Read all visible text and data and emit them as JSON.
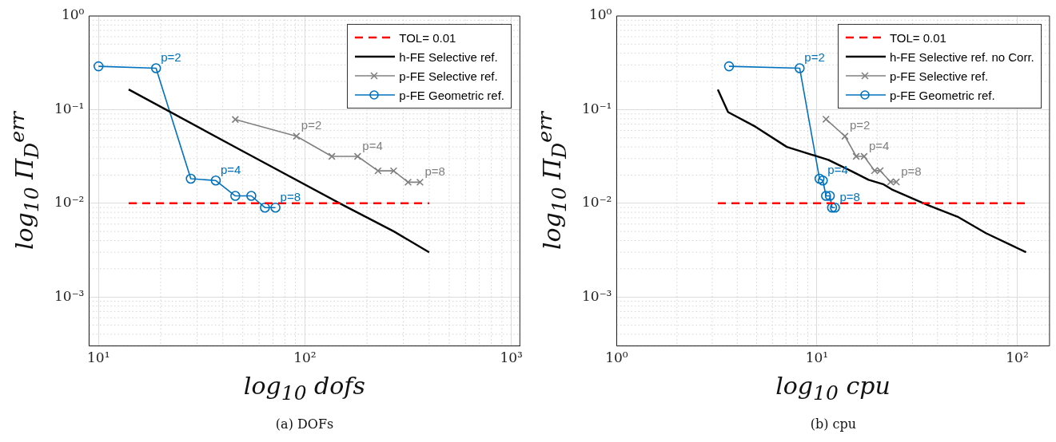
{
  "chart_data": [
    {
      "type": "line",
      "xlabel": "log$_{10}$ dofs",
      "ylabel": "log$_{10}$ Π$_{D}$$^{err}$",
      "log": "xy",
      "grid": true,
      "legend": "top right",
      "xlim": [
        9,
        1100
      ],
      "xticks": [
        {
          "value": 10,
          "label": "10¹"
        },
        {
          "value": 100,
          "label": "10²"
        },
        {
          "value": 1000,
          "label": "10³"
        }
      ],
      "ylim": [
        0.0003,
        1
      ],
      "yticks": [
        {
          "value": 0.001,
          "label": "10⁻³"
        },
        {
          "value": 0.01,
          "label": "10⁻²"
        },
        {
          "value": 0.1,
          "label": "10⁻¹"
        },
        {
          "value": 1,
          "label": "10⁰"
        }
      ],
      "series": [
        {
          "name": "TOL= 0.01",
          "color": "#ff0000",
          "line_style": "dashed",
          "marker": "none",
          "x": [
            14,
            400
          ],
          "values": [
            0.01,
            0.01
          ]
        },
        {
          "name": "h-FE Selective ref.",
          "color": "#000000",
          "marker": "none",
          "x": [
            14,
            50,
            150,
            270,
            400
          ],
          "values": [
            0.164,
            0.036,
            0.0098,
            0.005,
            0.003
          ]
        },
        {
          "name": "p-FE Selective ref.",
          "color": "#808080",
          "marker": "cross",
          "x": [
            46,
            91,
            135,
            180,
            226,
            269,
            316,
            361
          ],
          "values": [
            0.0785,
            0.052,
            0.0317,
            0.0317,
            0.0222,
            0.0222,
            0.0168,
            0.0168
          ]
        },
        {
          "name": "p-FE Geometric ref.",
          "color": "#0072bd",
          "marker": "circle",
          "x": [
            10,
            19,
            28,
            37,
            46,
            55,
            64,
            72
          ],
          "values": [
            0.29,
            0.277,
            0.0183,
            0.0175,
            0.012,
            0.012,
            0.009,
            0.009
          ]
        }
      ],
      "annotations": [
        {
          "text": "p=2",
          "x": 19,
          "y": 0.277
        },
        {
          "text": "p=4",
          "x": 37,
          "y": 0.0175
        },
        {
          "text": "p=8",
          "x": 72,
          "y": 0.009
        },
        {
          "text": "p=2",
          "x": 91,
          "y": 0.052
        },
        {
          "text": "p=4",
          "x": 180,
          "y": 0.0317
        },
        {
          "text": "p=8",
          "x": 361,
          "y": 0.0168
        },
        "(a) DOFs"
      ]
    },
    {
      "type": "line",
      "xlabel": "log$_{10}$ cpu",
      "ylabel": "log$_{10}$ Π$_{D}$$^{err}$",
      "log": "xy",
      "grid": true,
      "legend": "top right",
      "xlim": [
        1,
        145
      ],
      "xticks": [
        {
          "value": 1,
          "label": "10⁰"
        },
        {
          "value": 10,
          "label": "10¹"
        },
        {
          "value": 100,
          "label": "10²"
        }
      ],
      "ylim": [
        0.0003,
        1
      ],
      "yticks": [
        {
          "value": 0.001,
          "label": "10⁻³"
        },
        {
          "value": 0.01,
          "label": "10⁻²"
        },
        {
          "value": 0.1,
          "label": "10⁻¹"
        },
        {
          "value": 1,
          "label": "10⁰"
        }
      ],
      "series": [
        {
          "name": "TOL= 0.01",
          "color": "#ff0000",
          "line_style": "dashed",
          "marker": "none",
          "x": [
            3.2,
            110
          ],
          "values": [
            0.01,
            0.01
          ]
        },
        {
          "name": "h-FE Selective ref. no Corr.",
          "color": "#000000",
          "marker": "none",
          "x": [
            3.2,
            3.6,
            4.94,
            7.07,
            11.4,
            14.9,
            18.1,
            21.4,
            23.6,
            35.6,
            50.3,
            69.8,
            110.7
          ],
          "values": [
            0.164,
            0.094,
            0.0656,
            0.04,
            0.0291,
            0.022,
            0.0178,
            0.016,
            0.0141,
            0.0096,
            0.0072,
            0.0048,
            0.003
          ]
        },
        {
          "name": "p-FE Selective ref.",
          "color": "#808080",
          "marker": "cross",
          "x": [
            11.1,
            13.8,
            15.7,
            17.2,
            19.4,
            20.7,
            23.3,
            24.9
          ],
          "values": [
            0.079,
            0.052,
            0.0317,
            0.0317,
            0.0223,
            0.0223,
            0.0169,
            0.0169
          ]
        },
        {
          "name": "p-FE Geometric ref.",
          "color": "#0072bd",
          "marker": "circle",
          "x": [
            3.64,
            8.2,
            10.3,
            10.7,
            11.1,
            11.6,
            11.9,
            12.3
          ],
          "values": [
            0.29,
            0.277,
            0.0183,
            0.0175,
            0.012,
            0.012,
            0.009,
            0.009
          ]
        }
      ],
      "annotations": [
        {
          "text": "p=2",
          "x": 8.2,
          "y": 0.277
        },
        {
          "text": "p=4",
          "x": 10.7,
          "y": 0.0175
        },
        {
          "text": "p=8",
          "x": 12.3,
          "y": 0.009
        },
        {
          "text": "p=2",
          "x": 13.8,
          "y": 0.052
        },
        {
          "text": "p=4",
          "x": 17.2,
          "y": 0.0317
        },
        {
          "text": "p=8",
          "x": 24.9,
          "y": 0.0169
        },
        "(b) cpu"
      ]
    }
  ]
}
